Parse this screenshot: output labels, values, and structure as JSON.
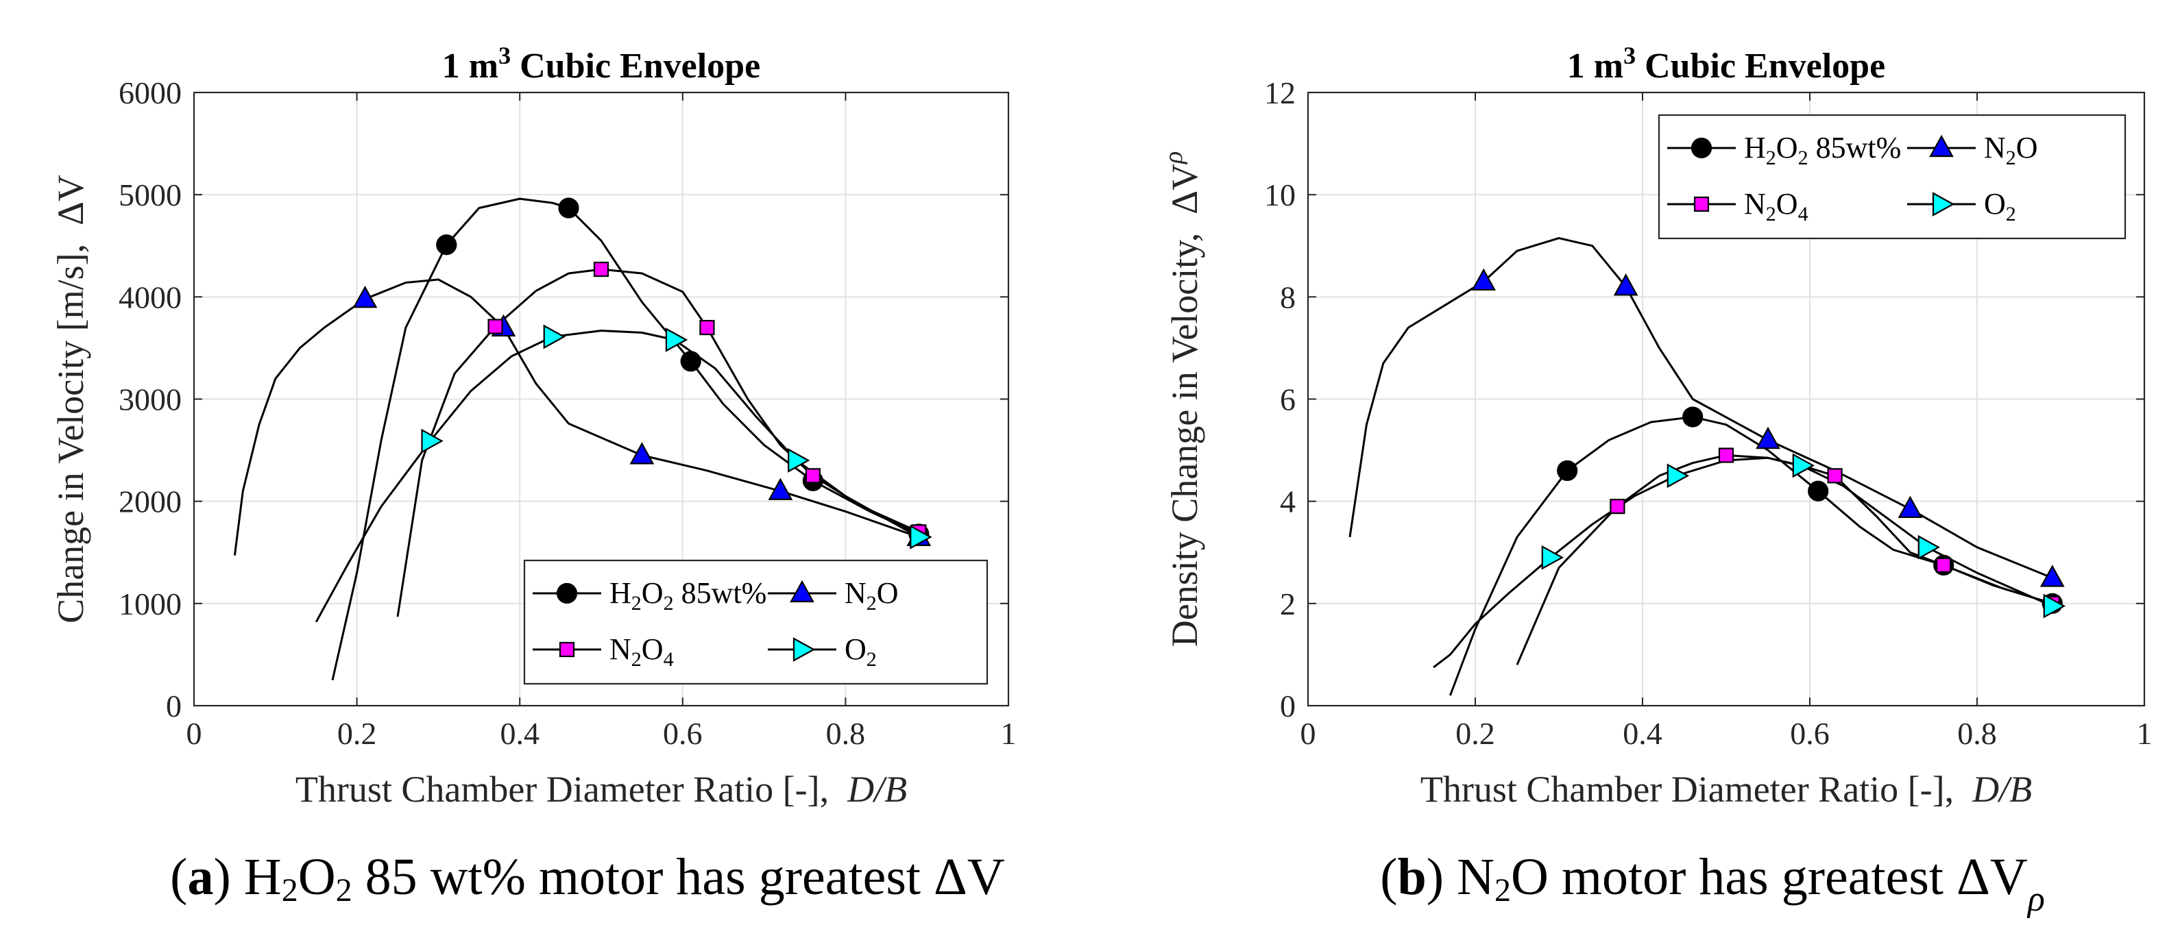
{
  "colors": {
    "h2o2": "#000000",
    "n2o": "#0000ff",
    "n2o4": "#ff00ff",
    "o2": "#00ffff",
    "grid": "#e2e2e2",
    "axis": "#262626"
  },
  "series_labels": {
    "h2o2": {
      "base": "H",
      "s1": "2",
      "mid": "O",
      "s2": "2",
      "tail": " 85wt%"
    },
    "n2o": {
      "base": "N",
      "s1": "2",
      "mid": "O",
      "s2": "",
      "tail": ""
    },
    "n2o4": {
      "base": "N",
      "s1": "2",
      "mid": "O",
      "s2": "4",
      "tail": ""
    },
    "o2": {
      "base": "O",
      "s1": "2",
      "mid": "",
      "s2": "",
      "tail": ""
    }
  },
  "chart_data": [
    {
      "type": "line",
      "id": "a",
      "title": {
        "prefix": "1 m",
        "sup": "3",
        "suffix": " Cubic Envelope"
      },
      "xlabel": {
        "text": "Thrust Chamber Diameter Ratio [-],",
        "italic": "D/B"
      },
      "ylabel": {
        "text": "Change in Velocity [m/s],",
        "symbol": "ΔV",
        "sub": ""
      },
      "xlim": [
        0,
        1
      ],
      "ylim": [
        0,
        6000
      ],
      "xticks": [
        0,
        0.2,
        0.4,
        0.6,
        0.8,
        1
      ],
      "xtick_labels": [
        "0",
        "0.2",
        "0.4",
        "0.6",
        "0.8",
        "1"
      ],
      "yticks": [
        0,
        1000,
        2000,
        3000,
        4000,
        5000,
        6000
      ],
      "ytick_labels": [
        "0",
        "1000",
        "2000",
        "3000",
        "4000",
        "5000",
        "6000"
      ],
      "grid": true,
      "legend_position": "bottom-right",
      "caption": {
        "letter": "a",
        "before": " H",
        "s1": "2",
        "mid": "O",
        "s2": "2",
        "after": " 85 wt% motor has greatest ΔV",
        "sub": ""
      },
      "series": [
        {
          "key": "h2o2",
          "name": "H2O2 85wt%",
          "marker": "circle",
          "x": [
            0.17,
            0.2,
            0.23,
            0.26,
            0.31,
            0.35,
            0.4,
            0.44,
            0.46,
            0.5,
            0.55,
            0.61,
            0.65,
            0.7,
            0.76,
            0.83,
            0.89
          ],
          "y": [
            250,
            1300,
            2600,
            3700,
            4510,
            4870,
            4960,
            4920,
            4870,
            4550,
            3950,
            3370,
            2950,
            2550,
            2200,
            1900,
            1680
          ],
          "markers_x": [
            0.31,
            0.46,
            0.61,
            0.76,
            0.89
          ],
          "markers_y": [
            4510,
            4870,
            3370,
            2200,
            1680
          ]
        },
        {
          "key": "n2o",
          "name": "N2O",
          "marker": "triangle-up",
          "x": [
            0.05,
            0.06,
            0.08,
            0.1,
            0.13,
            0.16,
            0.21,
            0.26,
            0.3,
            0.34,
            0.38,
            0.42,
            0.46,
            0.55,
            0.63,
            0.72,
            0.8,
            0.89
          ],
          "y": [
            1470,
            2100,
            2750,
            3200,
            3500,
            3700,
            3980,
            4140,
            4170,
            4000,
            3700,
            3150,
            2760,
            2450,
            2300,
            2100,
            1900,
            1650
          ],
          "markers_x": [
            0.21,
            0.38,
            0.55,
            0.72,
            0.89
          ],
          "markers_y": [
            3980,
            3700,
            2450,
            2100,
            1650
          ]
        },
        {
          "key": "n2o4",
          "name": "N2O4",
          "marker": "square",
          "x": [
            0.25,
            0.28,
            0.32,
            0.37,
            0.42,
            0.46,
            0.5,
            0.55,
            0.6,
            0.63,
            0.68,
            0.72,
            0.76,
            0.82,
            0.89
          ],
          "y": [
            870,
            2400,
            3250,
            3710,
            4060,
            4230,
            4270,
            4230,
            4050,
            3700,
            3000,
            2550,
            2250,
            1950,
            1700
          ],
          "markers_x": [
            0.37,
            0.5,
            0.63,
            0.76,
            0.89
          ],
          "markers_y": [
            3710,
            4270,
            3700,
            2250,
            1700
          ]
        },
        {
          "key": "o2",
          "name": "O2",
          "marker": "triangle-right",
          "x": [
            0.15,
            0.19,
            0.23,
            0.29,
            0.34,
            0.39,
            0.44,
            0.5,
            0.55,
            0.59,
            0.64,
            0.69,
            0.74,
            0.8,
            0.89
          ],
          "y": [
            820,
            1400,
            1950,
            2590,
            3080,
            3420,
            3610,
            3670,
            3650,
            3580,
            3300,
            2830,
            2400,
            2050,
            1650
          ],
          "markers_x": [
            0.29,
            0.44,
            0.59,
            0.74,
            0.89
          ],
          "markers_y": [
            2590,
            3610,
            3580,
            2400,
            1650
          ]
        }
      ]
    },
    {
      "type": "line",
      "id": "b",
      "title": {
        "prefix": "1 m",
        "sup": "3",
        "suffix": " Cubic Envelope"
      },
      "xlabel": {
        "text": "Thrust Chamber Diameter Ratio [-],",
        "italic": "D/B"
      },
      "ylabel": {
        "text": "Density Change in Velocity,",
        "symbol": "ΔV",
        "sub": "ρ"
      },
      "xlim": [
        0,
        1
      ],
      "ylim": [
        0,
        12
      ],
      "xticks": [
        0,
        0.2,
        0.4,
        0.6,
        0.8,
        1
      ],
      "xtick_labels": [
        "0",
        "0.2",
        "0.4",
        "0.6",
        "0.8",
        "1"
      ],
      "yticks": [
        0,
        2,
        4,
        6,
        8,
        10,
        12
      ],
      "ytick_labels": [
        "0",
        "2",
        "4",
        "6",
        "8",
        "10",
        "12"
      ],
      "grid": true,
      "legend_position": "top-right",
      "caption": {
        "letter": "b",
        "before": " N",
        "s1": "2",
        "mid": "O",
        "s2": "",
        "after": " motor has greatest  ΔV",
        "sub": "ρ"
      },
      "series": [
        {
          "key": "h2o2",
          "name": "H2O2 85wt%",
          "marker": "circle",
          "x": [
            0.17,
            0.2,
            0.25,
            0.31,
            0.36,
            0.41,
            0.46,
            0.5,
            0.55,
            0.61,
            0.66,
            0.7,
            0.76,
            0.83,
            0.89
          ],
          "y": [
            0.2,
            1.5,
            3.3,
            4.6,
            5.2,
            5.55,
            5.65,
            5.5,
            5.0,
            4.2,
            3.5,
            3.05,
            2.75,
            2.3,
            2.0
          ],
          "markers_x": [
            0.31,
            0.46,
            0.61,
            0.76,
            0.89
          ],
          "markers_y": [
            4.6,
            5.65,
            4.2,
            2.75,
            2.0
          ]
        },
        {
          "key": "n2o",
          "name": "N2O",
          "marker": "triangle-up",
          "x": [
            0.05,
            0.07,
            0.09,
            0.12,
            0.16,
            0.21,
            0.25,
            0.3,
            0.34,
            0.38,
            0.42,
            0.46,
            0.55,
            0.63,
            0.72,
            0.8,
            0.89
          ],
          "y": [
            3.3,
            5.5,
            6.7,
            7.4,
            7.8,
            8.3,
            8.9,
            9.15,
            9.0,
            8.2,
            7.0,
            6.0,
            5.2,
            4.6,
            3.85,
            3.1,
            2.5
          ],
          "markers_x": [
            0.21,
            0.38,
            0.55,
            0.72,
            0.89
          ],
          "markers_y": [
            8.3,
            8.2,
            5.2,
            3.85,
            2.5
          ]
        },
        {
          "key": "n2o4",
          "name": "N2O4",
          "marker": "square",
          "x": [
            0.25,
            0.3,
            0.37,
            0.42,
            0.46,
            0.5,
            0.55,
            0.6,
            0.63,
            0.68,
            0.72,
            0.76,
            0.82,
            0.89
          ],
          "y": [
            0.8,
            2.7,
            3.9,
            4.5,
            4.75,
            4.9,
            4.85,
            4.65,
            4.5,
            3.7,
            3.0,
            2.75,
            2.35,
            2.0
          ],
          "markers_x": [
            0.37,
            0.5,
            0.63,
            0.76,
            0.89
          ],
          "markers_y": [
            3.9,
            4.9,
            4.5,
            2.75,
            2.0
          ]
        },
        {
          "key": "o2",
          "name": "O2",
          "marker": "triangle-right",
          "x": [
            0.15,
            0.17,
            0.2,
            0.24,
            0.29,
            0.34,
            0.39,
            0.44,
            0.5,
            0.55,
            0.59,
            0.64,
            0.69,
            0.74,
            0.8,
            0.89
          ],
          "y": [
            0.75,
            1.0,
            1.6,
            2.2,
            2.9,
            3.55,
            4.1,
            4.5,
            4.8,
            4.85,
            4.7,
            4.3,
            3.7,
            3.1,
            2.6,
            1.95
          ],
          "markers_x": [
            0.29,
            0.44,
            0.59,
            0.74,
            0.89
          ],
          "markers_y": [
            2.9,
            4.5,
            4.7,
            3.1,
            1.95
          ]
        }
      ]
    }
  ]
}
